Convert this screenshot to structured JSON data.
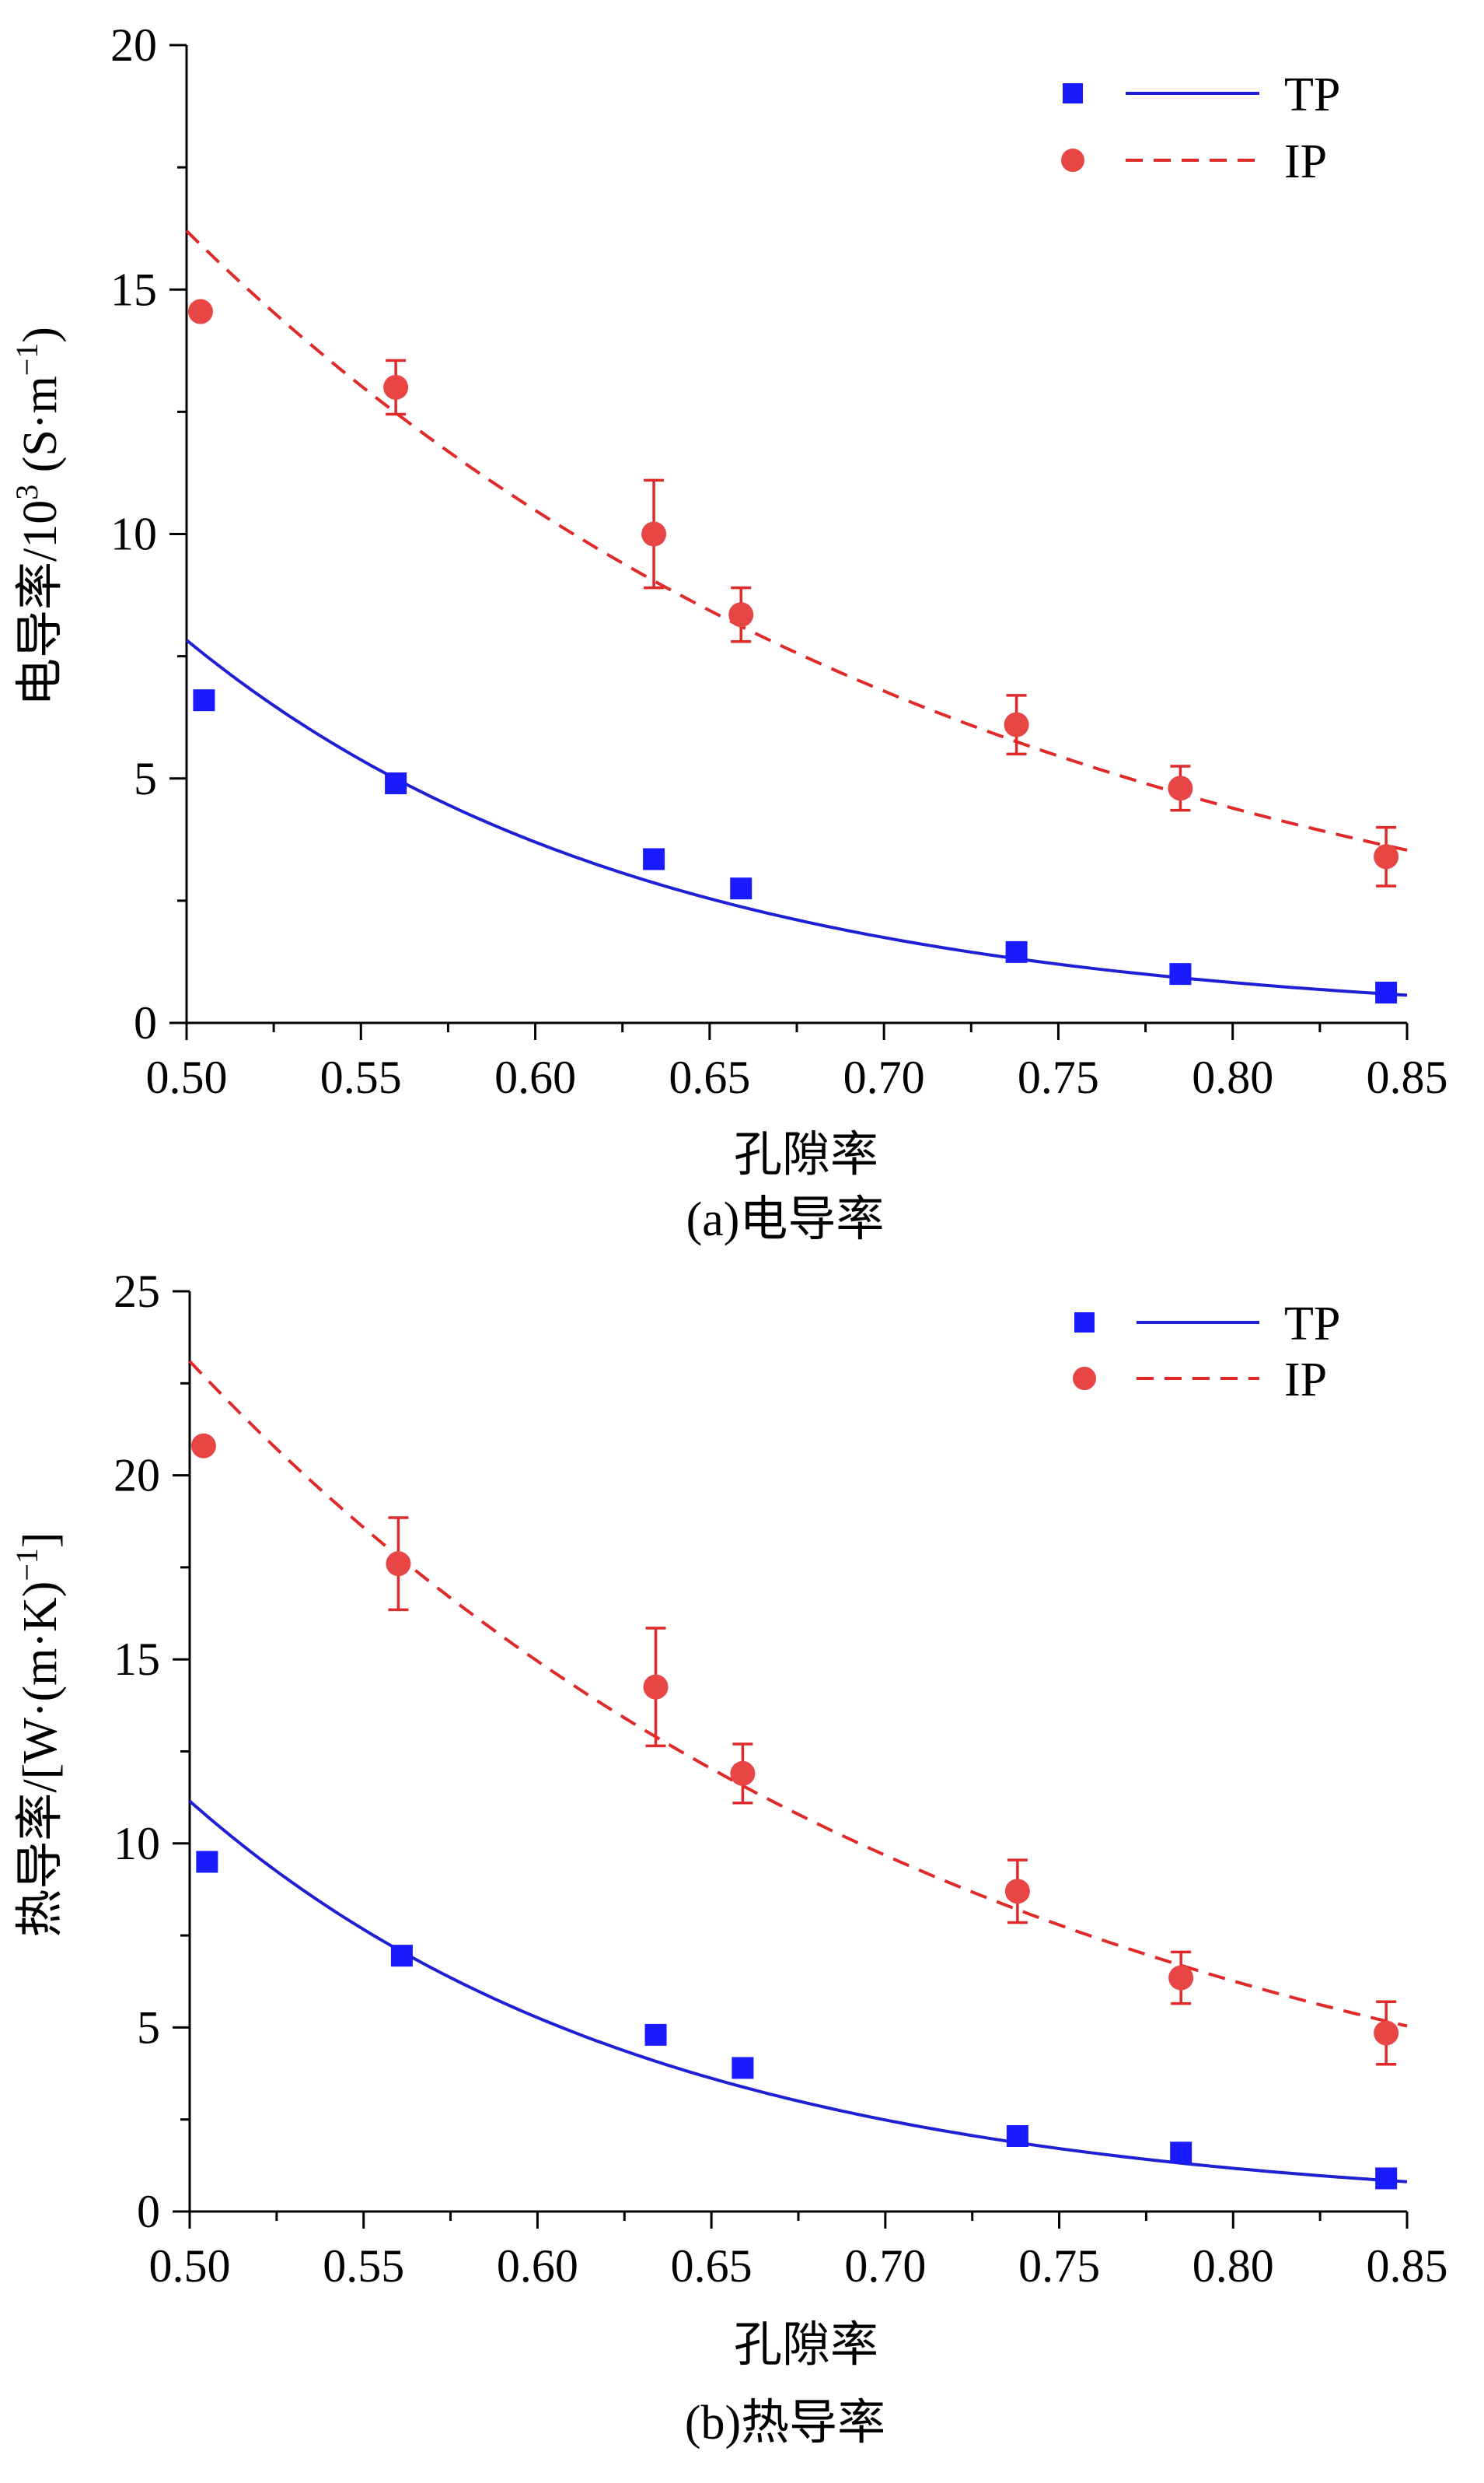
{
  "chart_data": [
    {
      "type": "scatter",
      "caption": "(a)电导率",
      "xlabel": "孔隙率",
      "ylabel": {
        "main": "电导率/10",
        "sup": "3",
        "unit_open": " (S·m",
        "unit_sup": "−1",
        "unit_close": ")"
      },
      "xlim": [
        0.5,
        0.85
      ],
      "ylim": [
        0,
        20
      ],
      "xticks": [
        0.5,
        0.55,
        0.6,
        0.65,
        0.7,
        0.75,
        0.8,
        0.85
      ],
      "xtick_labels": [
        "0.50",
        "0.55",
        "0.60",
        "0.65",
        "0.70",
        "0.75",
        "0.80",
        "0.85"
      ],
      "yticks": [
        0,
        5,
        10,
        15,
        20
      ],
      "ytick_labels": [
        "0",
        "5",
        "10",
        "15",
        "20"
      ],
      "legend_position": "top-right",
      "series": [
        {
          "name": "TP",
          "marker": "square",
          "color": "#1a1aff",
          "line_color": "#1f1fd6",
          "line_style": "solid",
          "fit": {
            "a": 7.83,
            "k": 7.5,
            "x0": 0.5
          },
          "points": [
            {
              "x": 0.505,
              "y": 6.6,
              "err": 0
            },
            {
              "x": 0.56,
              "y": 4.9,
              "err": 0
            },
            {
              "x": 0.634,
              "y": 3.35,
              "err": 0
            },
            {
              "x": 0.659,
              "y": 2.75,
              "err": 0
            },
            {
              "x": 0.738,
              "y": 1.45,
              "err": 0
            },
            {
              "x": 0.785,
              "y": 1.0,
              "err": 0
            },
            {
              "x": 0.844,
              "y": 0.62,
              "err": 0
            }
          ]
        },
        {
          "name": "IP",
          "marker": "circle",
          "color": "#e84545",
          "line_color": "#e02a2a",
          "line_style": "dashed",
          "fit": {
            "a": 16.2,
            "k": 4.35,
            "x0": 0.5
          },
          "points": [
            {
              "x": 0.504,
              "y": 14.55,
              "err": 0
            },
            {
              "x": 0.56,
              "y": 13.0,
              "err": 0.55
            },
            {
              "x": 0.634,
              "y": 10.0,
              "err": 1.1
            },
            {
              "x": 0.659,
              "y": 8.35,
              "err": 0.55
            },
            {
              "x": 0.738,
              "y": 6.1,
              "err": 0.6
            },
            {
              "x": 0.785,
              "y": 4.8,
              "err": 0.45
            },
            {
              "x": 0.844,
              "y": 3.4,
              "err": 0.6
            }
          ]
        }
      ]
    },
    {
      "type": "scatter",
      "caption": "(b)热导率",
      "xlabel": "孔隙率",
      "ylabel": {
        "main": "热导率/[W·(m·K)",
        "sup": "−1",
        "tail": "]"
      },
      "xlim": [
        0.5,
        0.85
      ],
      "ylim": [
        0,
        25
      ],
      "xticks": [
        0.5,
        0.55,
        0.6,
        0.65,
        0.7,
        0.75,
        0.8,
        0.85
      ],
      "xtick_labels": [
        "0.50",
        "0.55",
        "0.60",
        "0.65",
        "0.70",
        "0.75",
        "0.80",
        "0.85"
      ],
      "yticks": [
        0,
        5,
        10,
        15,
        20,
        25
      ],
      "ytick_labels": [
        "0",
        "5",
        "10",
        "15",
        "20",
        "25"
      ],
      "legend_position": "top-right",
      "series": [
        {
          "name": "TP",
          "marker": "square",
          "color": "#1a1aff",
          "line_color": "#1f1fd6",
          "line_style": "solid",
          "fit": {
            "a": 11.15,
            "k": 7.5,
            "x0": 0.5
          },
          "points": [
            {
              "x": 0.505,
              "y": 9.5,
              "err": 0
            },
            {
              "x": 0.561,
              "y": 6.95,
              "err": 0
            },
            {
              "x": 0.634,
              "y": 4.8,
              "err": 0
            },
            {
              "x": 0.659,
              "y": 3.9,
              "err": 0
            },
            {
              "x": 0.738,
              "y": 2.05,
              "err": 0
            },
            {
              "x": 0.785,
              "y": 1.6,
              "err": 0
            },
            {
              "x": 0.844,
              "y": 0.9,
              "err": 0
            }
          ]
        },
        {
          "name": "IP",
          "marker": "circle",
          "color": "#e84545",
          "line_color": "#e02a2a",
          "line_style": "dashed",
          "fit": {
            "a": 23.1,
            "k": 4.35,
            "x0": 0.5
          },
          "points": [
            {
              "x": 0.504,
              "y": 20.8,
              "err": 0
            },
            {
              "x": 0.56,
              "y": 17.6,
              "err": 1.25
            },
            {
              "x": 0.634,
              "y": 14.25,
              "err": 1.6
            },
            {
              "x": 0.659,
              "y": 11.9,
              "err": 0.8
            },
            {
              "x": 0.738,
              "y": 8.7,
              "err": 0.85
            },
            {
              "x": 0.785,
              "y": 6.35,
              "err": 0.7
            },
            {
              "x": 0.844,
              "y": 4.85,
              "err": 0.85
            }
          ]
        }
      ]
    }
  ]
}
